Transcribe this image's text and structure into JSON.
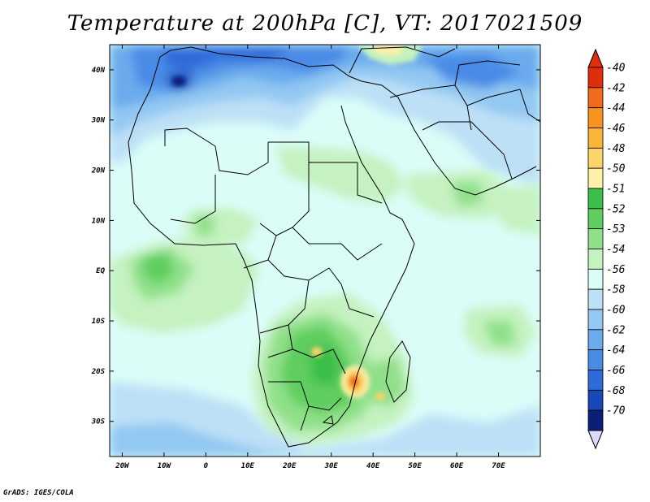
{
  "title": "Temperature at 200hPa [C], VT: 2017021509",
  "credit": "GrADS: IGES/COLA",
  "map": {
    "lon_range": [
      -23,
      80
    ],
    "lat_range": [
      -37,
      45
    ],
    "lat_ticks": [
      {
        "value": 40,
        "label": "40N"
      },
      {
        "value": 30,
        "label": "30N"
      },
      {
        "value": 20,
        "label": "20N"
      },
      {
        "value": 10,
        "label": "10N"
      },
      {
        "value": 0,
        "label": "EQ"
      },
      {
        "value": -10,
        "label": "10S"
      },
      {
        "value": -20,
        "label": "20S"
      },
      {
        "value": -30,
        "label": "30S"
      }
    ],
    "lon_ticks": [
      {
        "value": -20,
        "label": "20W"
      },
      {
        "value": -10,
        "label": "10W"
      },
      {
        "value": 0,
        "label": "0"
      },
      {
        "value": 10,
        "label": "10E"
      },
      {
        "value": 20,
        "label": "20E"
      },
      {
        "value": 30,
        "label": "30E"
      },
      {
        "value": 40,
        "label": "40E"
      },
      {
        "value": 50,
        "label": "50E"
      },
      {
        "value": 60,
        "label": "60E"
      },
      {
        "value": 70,
        "label": "70E"
      }
    ]
  },
  "colorbar": {
    "levels": [
      {
        "label": "-40",
        "color": "#e02d0e"
      },
      {
        "label": "-42",
        "color": "#f26b1d"
      },
      {
        "label": "-44",
        "color": "#f7931e"
      },
      {
        "label": "-46",
        "color": "#f8b53a"
      },
      {
        "label": "-48",
        "color": "#fbd46a"
      },
      {
        "label": "-50",
        "color": "#fdf0a8"
      },
      {
        "label": "-51",
        "color": "#3bbf4a"
      },
      {
        "label": "-52",
        "color": "#5fcd5f"
      },
      {
        "label": "-53",
        "color": "#90e08a"
      },
      {
        "label": "-54",
        "color": "#c5f2c0"
      },
      {
        "label": "-56",
        "color": "#dafdf8"
      },
      {
        "label": "-58",
        "color": "#bde0f7"
      },
      {
        "label": "-60",
        "color": "#93c8f2"
      },
      {
        "label": "-62",
        "color": "#6aabed"
      },
      {
        "label": "-64",
        "color": "#4a8be6"
      },
      {
        "label": "-66",
        "color": "#2e6bd9"
      },
      {
        "label": "-68",
        "color": "#1848b8"
      },
      {
        "label": "-70",
        "color": "#0b1e78"
      }
    ],
    "top_arrow_color": "#e02d0e",
    "bottom_arrow_color": "#ddd9fb"
  }
}
